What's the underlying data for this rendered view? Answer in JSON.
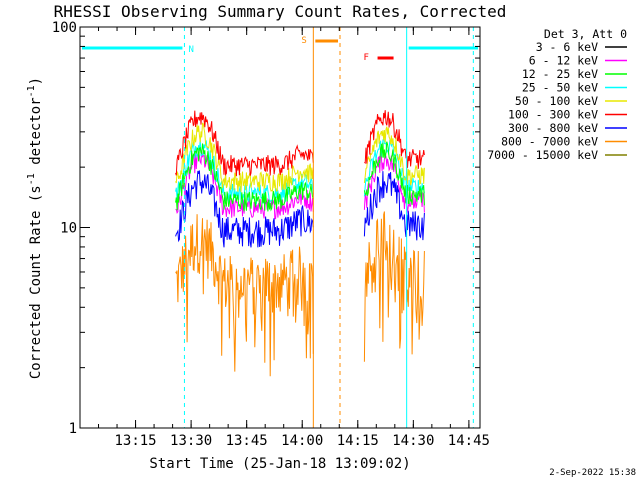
{
  "chart_data": {
    "type": "line",
    "title": "RHESSI Observing Summary Count Rates, Corrected",
    "xlabel": "Start Time (25-Jan-18 13:09:02)",
    "ylabel": "Corrected Count Rate (s⁻¹ detector⁻¹)",
    "ylabel_main": "Corrected Count Rate (s",
    "ylabel_sup1": "-1",
    "ylabel_mid": " detector",
    "ylabel_sup2": "-1",
    "ylabel_end": ")",
    "yscale": "log",
    "ylim": [
      1,
      100
    ],
    "xlim_minutes": [
      13.0,
      14.8
    ],
    "x_ticks": [
      {
        "label": "13:15",
        "value": 13.25
      },
      {
        "label": "13:30",
        "value": 13.5
      },
      {
        "label": "13:45",
        "value": 13.75
      },
      {
        "label": "14:00",
        "value": 14.0
      },
      {
        "label": "14:15",
        "value": 14.25
      },
      {
        "label": "14:30",
        "value": 14.5
      },
      {
        "label": "14:45",
        "value": 14.75
      }
    ],
    "y_ticks": [
      {
        "label": "100",
        "value": 100
      },
      {
        "label": "10",
        "value": 10
      },
      {
        "label": "1",
        "value": 1
      }
    ],
    "legend_title": "Det 3, Att 0",
    "legend_placement": "right",
    "series": [
      {
        "name": "3 - 6 keV",
        "color": "#000000"
      },
      {
        "name": "6 - 12 keV",
        "color": "#ff00ff"
      },
      {
        "name": "12 - 25 keV",
        "color": "#00ff00"
      },
      {
        "name": "25 - 50 keV",
        "color": "#00ffff"
      },
      {
        "name": "50 - 100 keV",
        "color": "#e8e800"
      },
      {
        "name": "100 - 300 keV",
        "color": "#ff0000"
      },
      {
        "name": "300 - 800 keV",
        "color": "#0000ff"
      },
      {
        "name": "800 - 7000 keV",
        "color": "#ff8c00"
      },
      {
        "name": "7000 - 15000 keV",
        "color": "#808000"
      }
    ],
    "flags": [
      {
        "label": "N",
        "color": "#00ffff",
        "x": [
          13.0,
          13.47
        ]
      },
      {
        "label": "N",
        "color": "#00ffff",
        "x": [
          14.47,
          14.8
        ]
      },
      {
        "label": "S",
        "color": "#ff8c00",
        "x": [
          14.05,
          14.17
        ]
      },
      {
        "label": "F",
        "color": "#ff0000",
        "x": [
          14.33,
          14.42
        ]
      }
    ],
    "vertical_lines": [
      {
        "x": 13.0,
        "color": "#00ffff",
        "style": "solid"
      },
      {
        "x": 13.47,
        "color": "#00ffff",
        "style": "dashed"
      },
      {
        "x": 14.05,
        "color": "#ff8c00",
        "style": "solid"
      },
      {
        "x": 14.17,
        "color": "#ff8c00",
        "style": "dashed"
      },
      {
        "x": 14.47,
        "color": "#00ffff",
        "style": "solid"
      },
      {
        "x": 14.77,
        "color": "#00ffff",
        "style": "dashed"
      }
    ],
    "data_segments": [
      {
        "x": [
          13.43,
          14.05
        ],
        "approx_peak": {
          "100 - 300 keV": 38,
          "50 - 100 keV": 30,
          "25 - 50 keV": 26,
          "300 - 800 keV": 17,
          "800 - 7000 keV": 9
        }
      },
      {
        "x": [
          14.28,
          14.55
        ],
        "approx_peak": {
          "100 - 300 keV": 38,
          "50 - 100 keV": 30,
          "25 - 50 keV": 26,
          "300 - 800 keV": 17,
          "800 - 7000 keV": 9
        }
      }
    ]
  },
  "footer": {
    "date_stamp": "2-Sep-2022 15:38"
  }
}
